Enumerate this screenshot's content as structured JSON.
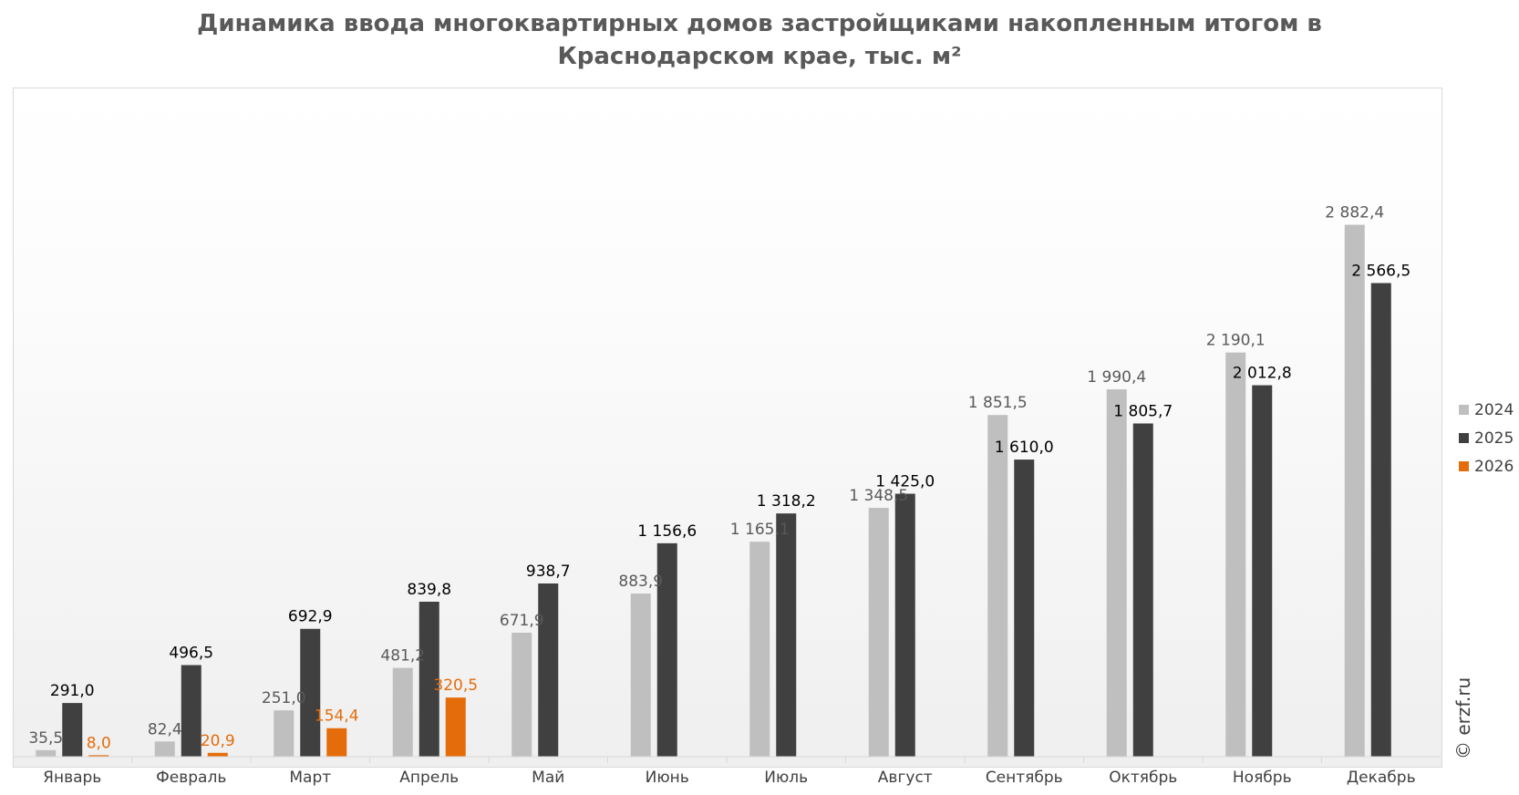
{
  "chart_data": {
    "type": "bar",
    "title": "Динамика ввода многоквартирных домов застройщиками накопленным итогом в Краснодарском крае, тыс. м²",
    "categories": [
      "Январь",
      "Февраль",
      "Март",
      "Апрель",
      "Май",
      "Июнь",
      "Июль",
      "Август",
      "Сентябрь",
      "Октябрь",
      "Ноябрь",
      "Декабрь"
    ],
    "series": [
      {
        "name": "2024",
        "color": "#bfbfbf",
        "label_color": "#595959",
        "values": [
          35.5,
          82.4,
          251.0,
          481.2,
          671.9,
          883.9,
          1165.1,
          1348.5,
          1851.5,
          1990.4,
          2190.1,
          2882.4
        ],
        "labels": [
          "35,5",
          "82,4",
          "251,0",
          "481,2",
          "671,9",
          "883,9",
          "1 165,1",
          "1 348,5",
          "1 851,5",
          "1 990,4",
          "2 190,1",
          "2 882,4"
        ]
      },
      {
        "name": "2025",
        "color": "#404040",
        "label_color": "#000000",
        "values": [
          291.0,
          496.5,
          692.9,
          839.8,
          938.7,
          1156.6,
          1318.2,
          1425.0,
          1610.0,
          1805.7,
          2012.8,
          2566.5
        ],
        "labels": [
          "291,0",
          "496,5",
          "692,9",
          "839,8",
          "938,7",
          "1 156,6",
          "1 318,2",
          "1 425,0",
          "1 610,0",
          "1 805,7",
          "2 012,8",
          "2 566,5"
        ]
      },
      {
        "name": "2026",
        "color": "#e46c0a",
        "label_color": "#e46c0a",
        "values": [
          8.0,
          20.9,
          154.4,
          320.5,
          null,
          null,
          null,
          null,
          null,
          null,
          null,
          null
        ],
        "labels": [
          "8,0",
          "20,9",
          "154,4",
          "320,5",
          null,
          null,
          null,
          null,
          null,
          null,
          null,
          null
        ]
      }
    ],
    "ylim": [
      0,
      3300
    ],
    "grid": false,
    "legend_position": "right",
    "watermark": "© erzf.ru"
  }
}
